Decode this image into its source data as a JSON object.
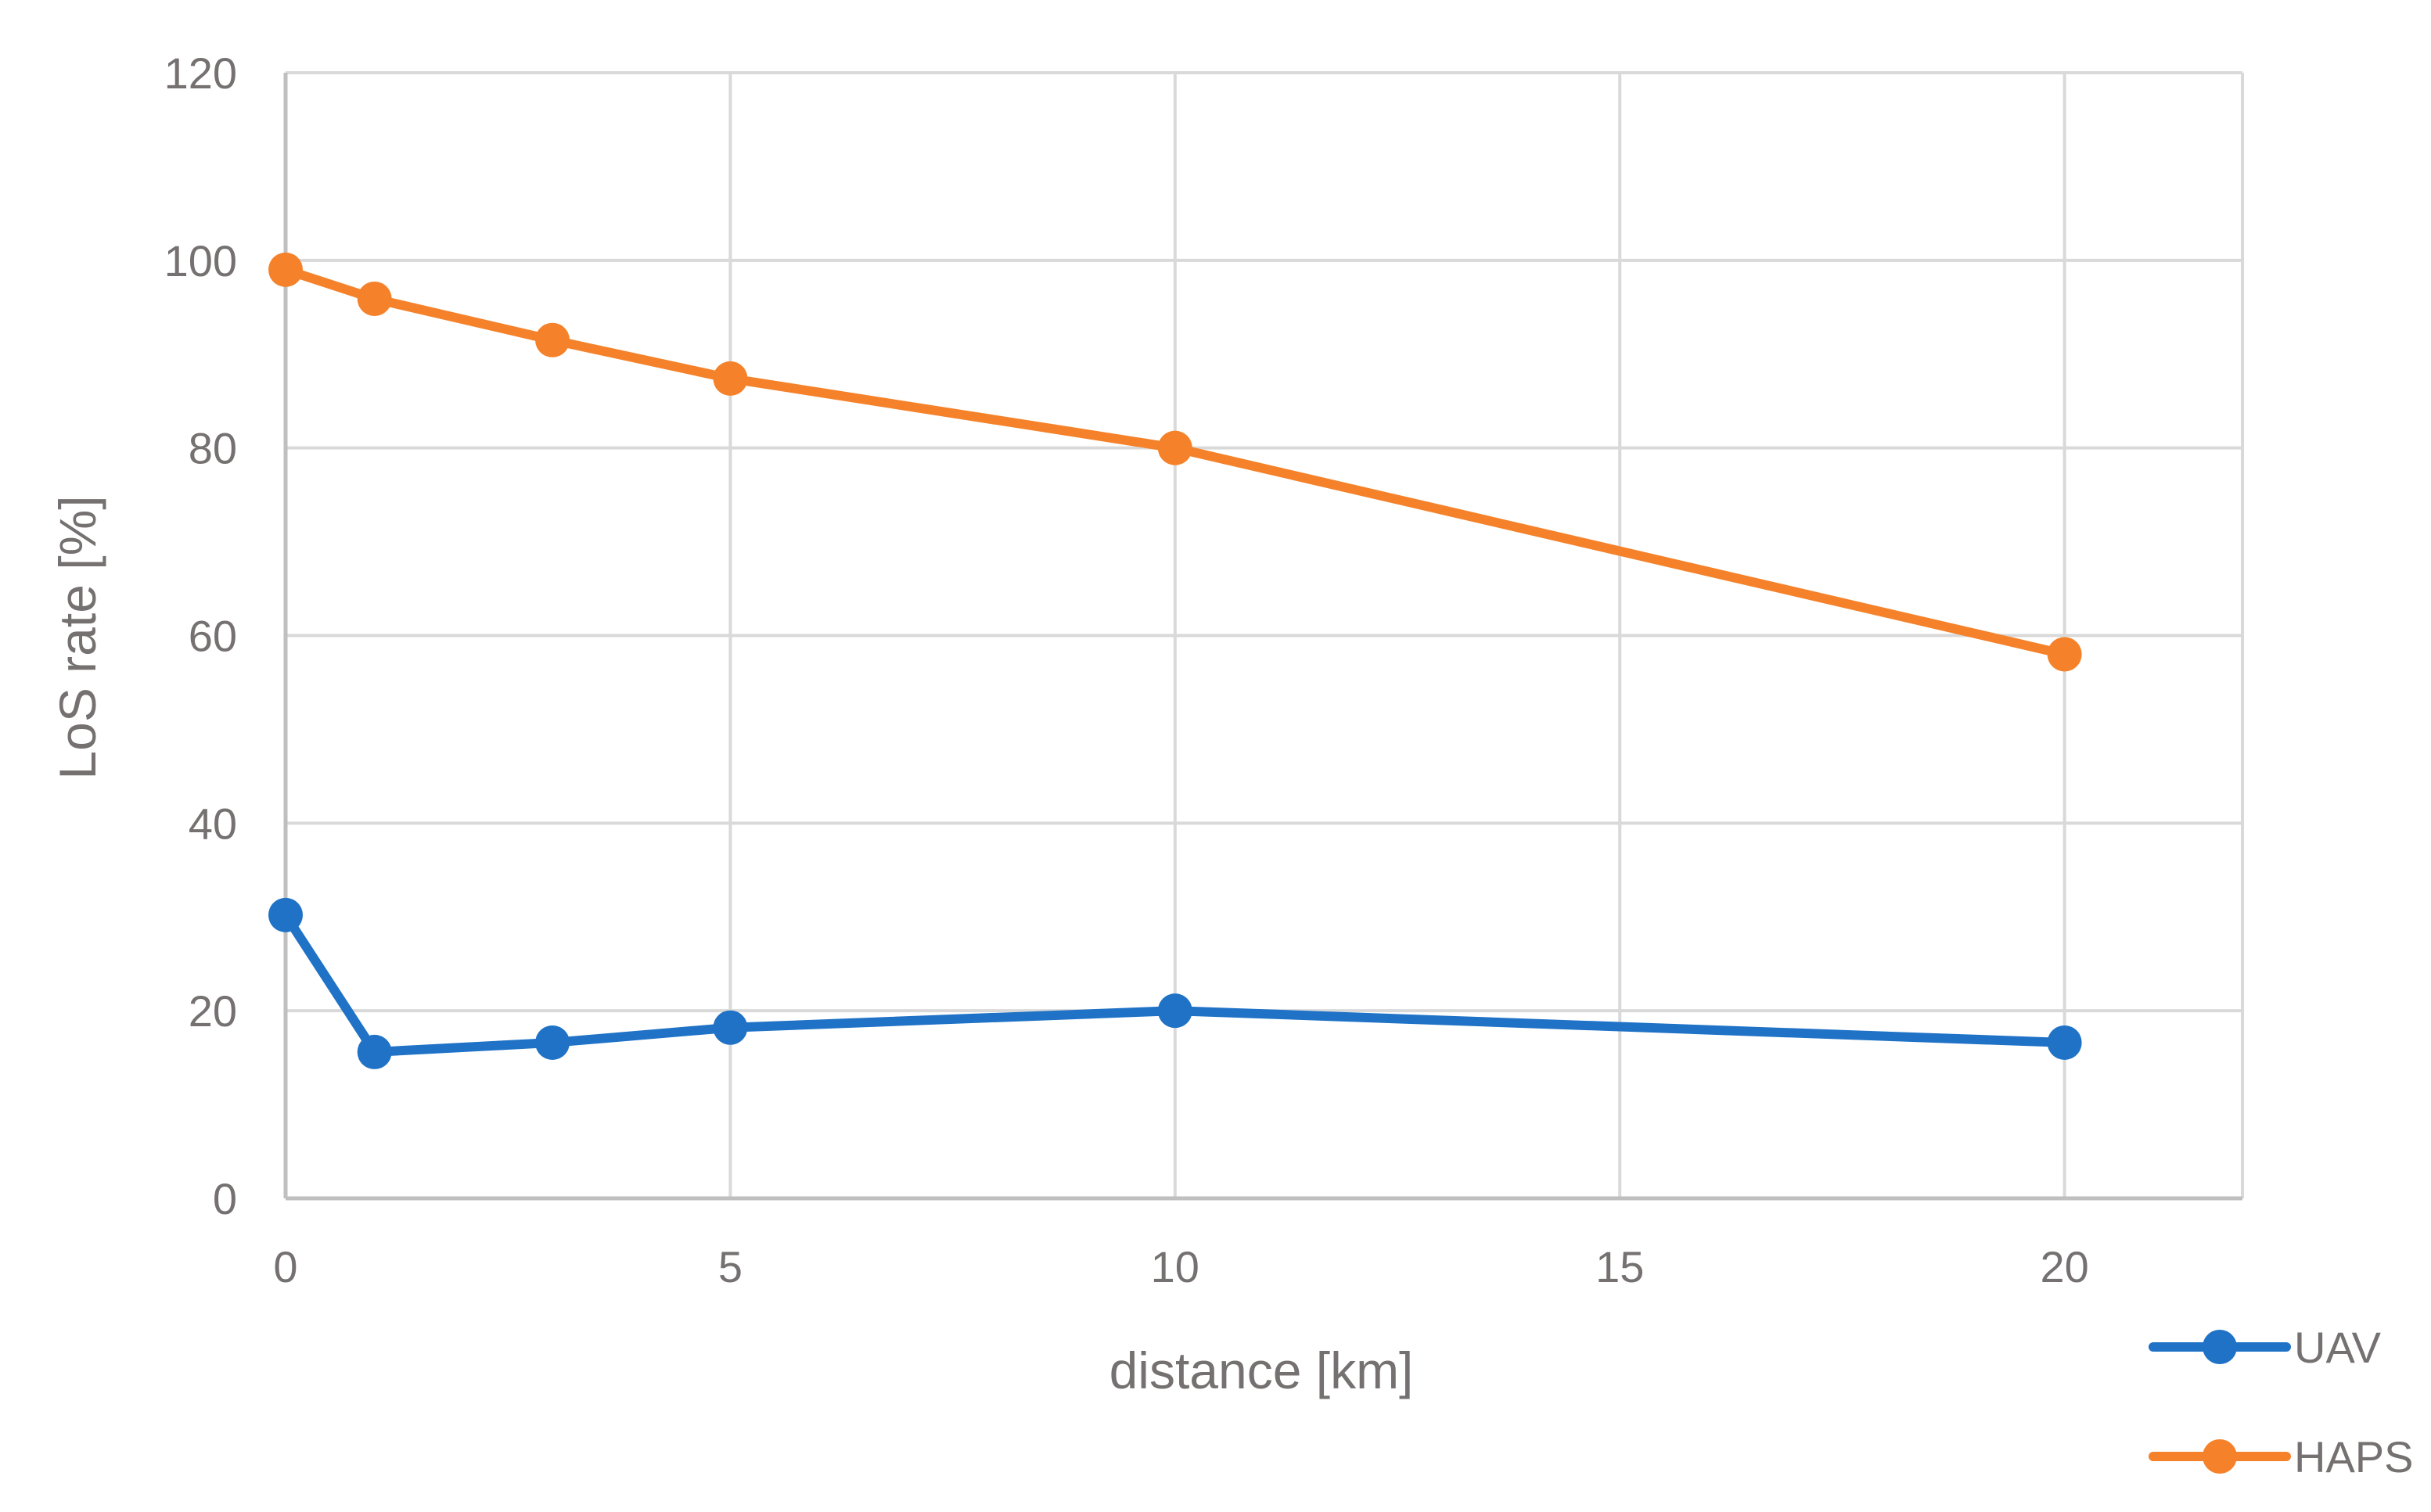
{
  "chart_data": {
    "type": "line",
    "title": "",
    "xlabel": "distance [km]",
    "ylabel": "LoS rate [%]",
    "xlim": [
      0,
      22
    ],
    "ylim": [
      0,
      120
    ],
    "xticks": [
      0,
      5,
      10,
      15,
      20
    ],
    "yticks": [
      0,
      20,
      40,
      60,
      80,
      100,
      120
    ],
    "grid": true,
    "legend": "bottom-right",
    "series": [
      {
        "name": "UAV",
        "color": "#1f72c6",
        "x": [
          0,
          1,
          3,
          5,
          10,
          20
        ],
        "y": [
          30.2,
          15.6,
          16.6,
          18.2,
          20.0,
          16.6
        ]
      },
      {
        "name": "HAPS",
        "color": "#f5822a",
        "x": [
          0,
          1,
          3,
          5,
          10,
          20
        ],
        "y": [
          99.0,
          95.9,
          91.5,
          87.4,
          80.0,
          58.0
        ]
      }
    ]
  }
}
